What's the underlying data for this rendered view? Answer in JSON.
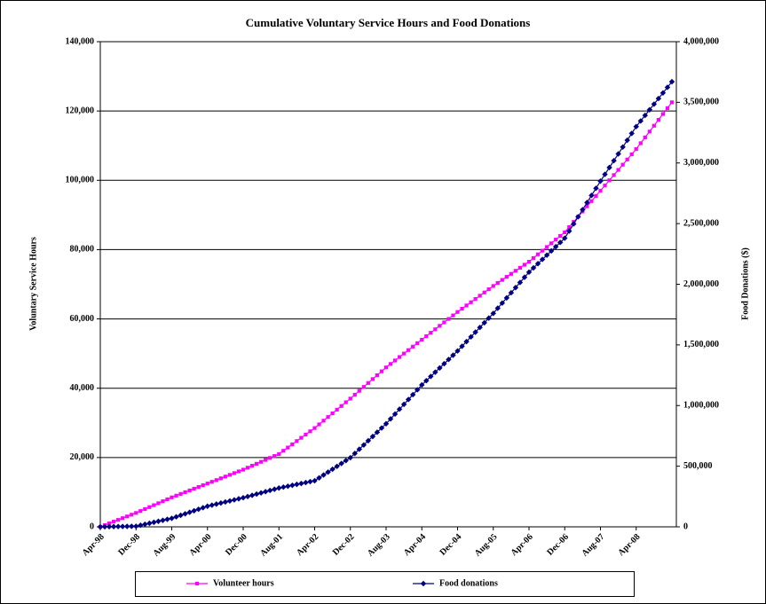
{
  "chart_data": {
    "type": "line",
    "title": "Cumulative Voluntary Service Hours and Food Donations",
    "y_label": "Voluntary Service Hours",
    "y2_label": "Food Donations ($)",
    "categories": [
      "Apr-98",
      null,
      null,
      null,
      null,
      null,
      null,
      null,
      "Dec-98",
      null,
      null,
      null,
      null,
      null,
      null,
      null,
      "Aug-99",
      null,
      null,
      null,
      null,
      null,
      null,
      null,
      "Apr-00",
      null,
      null,
      null,
      null,
      null,
      null,
      null,
      "Dec-00",
      null,
      null,
      null,
      null,
      null,
      null,
      null,
      "Aug-01",
      null,
      null,
      null,
      null,
      null,
      null,
      null,
      "Apr-02",
      null,
      null,
      null,
      null,
      null,
      null,
      null,
      "Dec-02",
      null,
      null,
      null,
      null,
      null,
      null,
      null,
      "Aug-03",
      null,
      null,
      null,
      null,
      null,
      null,
      null,
      "Apr-04",
      null,
      null,
      null,
      null,
      null,
      null,
      null,
      "Dec-04",
      null,
      null,
      null,
      null,
      null,
      null,
      null,
      "Aug-05",
      null,
      null,
      null,
      null,
      null,
      null,
      null,
      "Apr-06",
      null,
      null,
      null,
      null,
      null,
      null,
      null,
      "Dec-06",
      null,
      null,
      null,
      null,
      null,
      null,
      null,
      "Aug-07",
      null,
      null,
      null,
      null,
      null,
      null,
      null,
      "Apr-08",
      null,
      null,
      null,
      null,
      null,
      null,
      null,
      null
    ],
    "series": [
      {
        "name": "Volunteer hours",
        "color": "#ff00ff",
        "axis": "y",
        "marker": "square",
        "values": [
          0,
          500,
          1000,
          1500,
          2000,
          2500,
          3000,
          3500,
          4000,
          4560,
          5130,
          5690,
          6250,
          6810,
          7380,
          7940,
          8500,
          9000,
          9500,
          10000,
          10500,
          11000,
          11500,
          12000,
          12500,
          13000,
          13500,
          14000,
          14500,
          15000,
          15500,
          16000,
          16500,
          17060,
          17630,
          18190,
          18750,
          19310,
          19880,
          20440,
          21000,
          21940,
          22880,
          23810,
          24750,
          25690,
          26630,
          27560,
          28500,
          29560,
          30630,
          31690,
          32750,
          33810,
          34880,
          35940,
          37000,
          38130,
          39250,
          40380,
          41500,
          42630,
          43750,
          44880,
          46000,
          47000,
          48000,
          49000,
          50000,
          51000,
          52000,
          53000,
          54000,
          55000,
          56000,
          57000,
          58000,
          59000,
          60000,
          61000,
          62000,
          62940,
          63880,
          64810,
          65750,
          66690,
          67630,
          68560,
          69500,
          70380,
          71250,
          72130,
          73000,
          73880,
          74750,
          75630,
          76500,
          77560,
          78630,
          79690,
          80750,
          81810,
          82880,
          83940,
          85000,
          86500,
          88000,
          89500,
          91000,
          92500,
          94000,
          95500,
          97000,
          98500,
          100000,
          101500,
          103000,
          104500,
          106000,
          107500,
          109000,
          110690,
          112380,
          114060,
          115750,
          117440,
          119130,
          120810,
          122500
        ]
      },
      {
        "name": "Food donations",
        "color": "#000080",
        "axis": "y2",
        "marker": "diamond",
        "values": [
          0,
          630,
          1250,
          1880,
          2500,
          3130,
          3750,
          4380,
          5000,
          13130,
          21250,
          29380,
          37500,
          45630,
          53750,
          61880,
          70000,
          82500,
          95000,
          107500,
          120000,
          132500,
          145000,
          157500,
          170000,
          178750,
          187500,
          196250,
          205000,
          213750,
          222500,
          231250,
          240000,
          250000,
          260000,
          270000,
          280000,
          290000,
          300000,
          310000,
          320000,
          327500,
          335000,
          342500,
          350000,
          357500,
          365000,
          372500,
          380000,
          403750,
          427500,
          451250,
          475000,
          498750,
          522500,
          546250,
          570000,
          605000,
          640000,
          675000,
          710000,
          745000,
          780000,
          815000,
          850000,
          890000,
          930000,
          970000,
          1010000,
          1050000,
          1090000,
          1130000,
          1170000,
          1205000,
          1240000,
          1275000,
          1310000,
          1345000,
          1380000,
          1415000,
          1450000,
          1488750,
          1527500,
          1566250,
          1605000,
          1643750,
          1682500,
          1721250,
          1760000,
          1802500,
          1845000,
          1887500,
          1930000,
          1972500,
          2015000,
          2057500,
          2100000,
          2135000,
          2170000,
          2205000,
          2240000,
          2275000,
          2310000,
          2345000,
          2380000,
          2438750,
          2497500,
          2556250,
          2615000,
          2673750,
          2732500,
          2791250,
          2850000,
          2906250,
          2962500,
          3018750,
          3075000,
          3131250,
          3187500,
          3243750,
          3300000,
          3346250,
          3392500,
          3438750,
          3485000,
          3531250,
          3577500,
          3623750,
          3670000
        ]
      }
    ],
    "ylim": [
      0,
      140000
    ],
    "yticks": [
      0,
      {
        "value": 20000,
        "label": "20,000"
      },
      {
        "value": 40000,
        "label": "40,000"
      },
      {
        "value": 60000,
        "label": "60,000"
      },
      {
        "value": 80000,
        "label": "80,000"
      },
      {
        "value": 100000,
        "label": "100,000"
      },
      {
        "value": 120000,
        "label": "120,000"
      },
      {
        "value": 140000,
        "label": "140,000"
      }
    ],
    "y2lim": [
      0,
      4000000
    ],
    "y2ticks": [
      0,
      {
        "value": 500000,
        "label": "500,000"
      },
      {
        "value": 1000000,
        "label": "1,000,000"
      },
      {
        "value": 1500000,
        "label": "1,500,000"
      },
      {
        "value": 2000000,
        "label": "2,000,000"
      },
      {
        "value": 2500000,
        "label": "2,500,000"
      },
      {
        "value": 3000000,
        "label": "3,000,000"
      },
      {
        "value": 3500000,
        "label": "3,500,000"
      },
      {
        "value": 4000000,
        "label": "4,000,000"
      }
    ],
    "grid": true,
    "legend": "bottom"
  }
}
